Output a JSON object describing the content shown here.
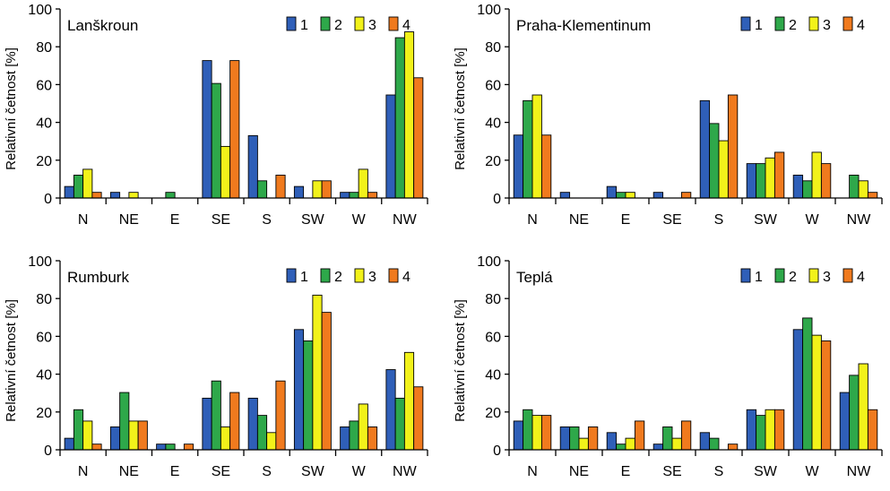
{
  "chart_data": [
    {
      "type": "bar",
      "title": "Lanškroun",
      "ylabel": "Relativní četnost [%]",
      "xlabel": "",
      "ylim": [
        0,
        100
      ],
      "yticks": [
        0,
        20,
        40,
        60,
        80,
        100
      ],
      "categories": [
        "N",
        "NE",
        "E",
        "SE",
        "S",
        "SW",
        "W",
        "NW"
      ],
      "legend": [
        "1",
        "2",
        "3",
        "4"
      ],
      "colors": [
        "#2f5fb8",
        "#2ea84a",
        "#f2f21a",
        "#f07a1e"
      ],
      "series": [
        {
          "name": "1",
          "values": [
            6.1,
            3.0,
            0,
            72.7,
            33.0,
            6.1,
            3.0,
            54.5
          ]
        },
        {
          "name": "2",
          "values": [
            12.1,
            0,
            3.0,
            60.6,
            9.1,
            0,
            3.0,
            84.8
          ]
        },
        {
          "name": "3",
          "values": [
            15.2,
            3.0,
            0,
            27.3,
            0,
            9.1,
            15.2,
            87.9
          ]
        },
        {
          "name": "4",
          "values": [
            3.0,
            0,
            0,
            72.7,
            12.1,
            9.1,
            3.0,
            63.6
          ]
        }
      ]
    },
    {
      "type": "bar",
      "title": "Praha-Klementinum",
      "ylabel": "Relativní četnost [%]",
      "xlabel": "",
      "ylim": [
        0,
        100
      ],
      "yticks": [
        0,
        20,
        40,
        60,
        80,
        100
      ],
      "categories": [
        "N",
        "NE",
        "E",
        "SE",
        "S",
        "SW",
        "W",
        "NW"
      ],
      "legend": [
        "1",
        "2",
        "3",
        "4"
      ],
      "colors": [
        "#2f5fb8",
        "#2ea84a",
        "#f2f21a",
        "#f07a1e"
      ],
      "series": [
        {
          "name": "1",
          "values": [
            33.3,
            3.0,
            6.1,
            3.0,
            51.5,
            18.2,
            12.1,
            0
          ]
        },
        {
          "name": "2",
          "values": [
            51.5,
            0,
            3.0,
            0,
            39.4,
            18.2,
            9.1,
            12.1
          ]
        },
        {
          "name": "3",
          "values": [
            54.5,
            0,
            3.0,
            0,
            30.3,
            21.2,
            24.2,
            9.1
          ]
        },
        {
          "name": "4",
          "values": [
            33.3,
            0,
            0,
            3.0,
            54.5,
            24.2,
            18.2,
            3.0
          ]
        }
      ]
    },
    {
      "type": "bar",
      "title": "Rumburk",
      "ylabel": "Relativní četnost [%]",
      "xlabel": "",
      "ylim": [
        0,
        100
      ],
      "yticks": [
        0,
        20,
        40,
        60,
        80,
        100
      ],
      "categories": [
        "N",
        "NE",
        "E",
        "SE",
        "S",
        "SW",
        "W",
        "NW"
      ],
      "legend": [
        "1",
        "2",
        "3",
        "4"
      ],
      "colors": [
        "#2f5fb8",
        "#2ea84a",
        "#f2f21a",
        "#f07a1e"
      ],
      "series": [
        {
          "name": "1",
          "values": [
            6.1,
            12.1,
            3.0,
            27.3,
            27.3,
            63.6,
            12.1,
            42.4
          ]
        },
        {
          "name": "2",
          "values": [
            21.2,
            30.3,
            3.0,
            36.4,
            18.2,
            57.6,
            15.2,
            27.3
          ]
        },
        {
          "name": "3",
          "values": [
            15.2,
            15.2,
            0,
            12.1,
            9.1,
            81.8,
            24.2,
            51.5
          ]
        },
        {
          "name": "4",
          "values": [
            3.0,
            15.2,
            3.0,
            30.3,
            36.4,
            72.7,
            12.1,
            33.3
          ]
        }
      ]
    },
    {
      "type": "bar",
      "title": "Teplá",
      "ylabel": "Relativní četnost [%]",
      "xlabel": "",
      "ylim": [
        0,
        100
      ],
      "yticks": [
        0,
        20,
        40,
        60,
        80,
        100
      ],
      "categories": [
        "N",
        "NE",
        "E",
        "SE",
        "S",
        "SW",
        "W",
        "NW"
      ],
      "legend": [
        "1",
        "2",
        "3",
        "4"
      ],
      "colors": [
        "#2f5fb8",
        "#2ea84a",
        "#f2f21a",
        "#f07a1e"
      ],
      "series": [
        {
          "name": "1",
          "values": [
            15.2,
            12.1,
            9.1,
            3.0,
            9.1,
            21.2,
            63.6,
            30.3
          ]
        },
        {
          "name": "2",
          "values": [
            21.2,
            12.1,
            3.0,
            12.1,
            6.1,
            18.2,
            69.7,
            39.4
          ]
        },
        {
          "name": "3",
          "values": [
            18.2,
            6.1,
            6.1,
            6.1,
            0,
            21.2,
            60.6,
            45.5
          ]
        },
        {
          "name": "4",
          "values": [
            18.2,
            12.1,
            15.2,
            15.2,
            3.0,
            21.2,
            57.6,
            21.2
          ]
        }
      ]
    }
  ]
}
